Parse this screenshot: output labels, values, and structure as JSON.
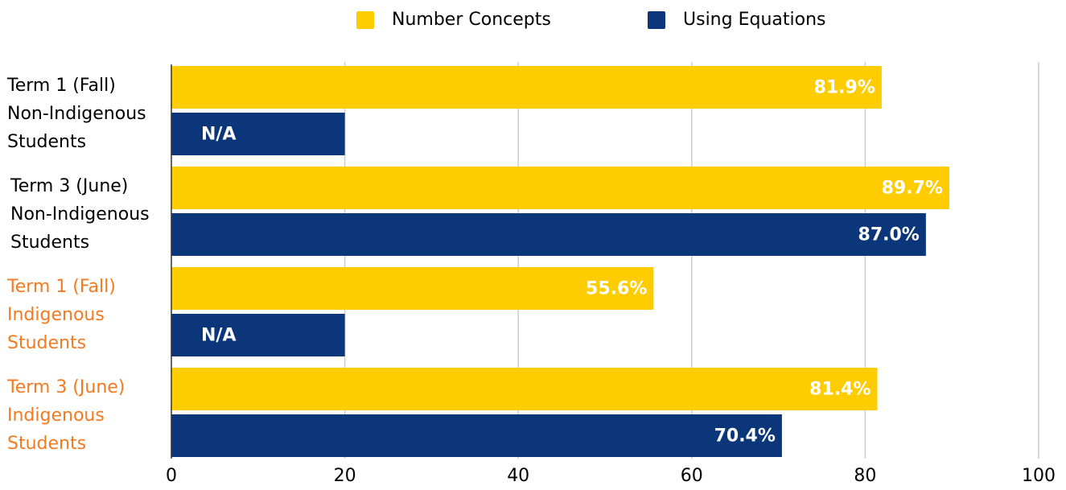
{
  "chart_data": {
    "type": "hbar",
    "categories": [
      [
        "Term 1 (Fall)",
        "Non-Indigenous",
        "Students"
      ],
      [
        "Term 3 (June)",
        "Non-Indigenous",
        "Students"
      ],
      [
        "Term 1 (Fall)",
        "Indigenous",
        "Students"
      ],
      [
        "Term 3 (June)",
        "Indigenous",
        "Students"
      ]
    ],
    "category_colors": [
      "#000000",
      "#000000",
      "#f47a20",
      "#f47a20"
    ],
    "series": [
      {
        "name": "Number Concepts",
        "color": "#ffcc00",
        "values": [
          81.9,
          89.7,
          55.6,
          81.4
        ],
        "value_labels": [
          "81.9%",
          "89.7%",
          "55.6%",
          "81.4%"
        ]
      },
      {
        "name": "Using Equations",
        "color": "#0b377a",
        "values": [
          20,
          87.0,
          20,
          70.4
        ],
        "value_labels": [
          "N/A",
          "87.0%",
          "N/A",
          "70.4%"
        ]
      }
    ],
    "xlim": [
      0,
      100
    ],
    "xticks": [
      0,
      20,
      40,
      60,
      80,
      100
    ],
    "grid": true,
    "legend": "top"
  }
}
